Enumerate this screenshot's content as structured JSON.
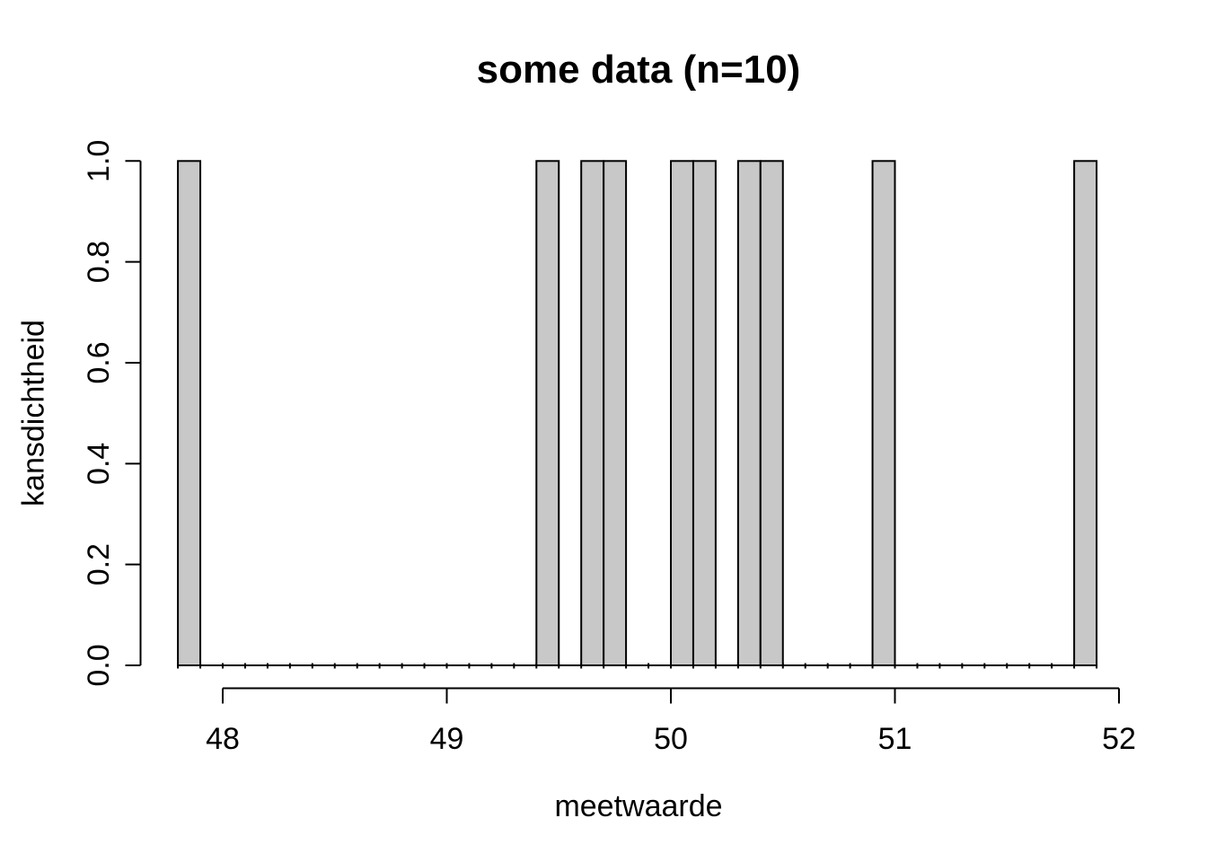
{
  "title": "some data (n=10)",
  "chart_data": {
    "type": "bar",
    "subtype": "histogram",
    "title": "some data (n=10)",
    "xlabel": "meetwaarde",
    "ylabel": "kansdichtheid",
    "xlim": [
      47.63,
      52.06
    ],
    "ylim": [
      0.0,
      1.0
    ],
    "grid": false,
    "legend": "none",
    "bin_width": 0.1,
    "x_ticks": [
      {
        "value": 48,
        "label": "48"
      },
      {
        "value": 49,
        "label": "49"
      },
      {
        "value": 50,
        "label": "50"
      },
      {
        "value": 51,
        "label": "51"
      },
      {
        "value": 52,
        "label": "52"
      }
    ],
    "y_ticks": [
      {
        "value": 0.0,
        "label": "0.0"
      },
      {
        "value": 0.2,
        "label": "0.2"
      },
      {
        "value": 0.4,
        "label": "0.4"
      },
      {
        "value": 0.6,
        "label": "0.6"
      },
      {
        "value": 0.8,
        "label": "0.8"
      },
      {
        "value": 1.0,
        "label": "1.0"
      }
    ],
    "bins": [
      {
        "start": 47.8,
        "end": 47.9,
        "density": 1.0
      },
      {
        "start": 49.4,
        "end": 49.5,
        "density": 1.0
      },
      {
        "start": 49.6,
        "end": 49.7,
        "density": 1.0
      },
      {
        "start": 49.7,
        "end": 49.8,
        "density": 1.0
      },
      {
        "start": 50.0,
        "end": 50.1,
        "density": 1.0
      },
      {
        "start": 50.1,
        "end": 50.2,
        "density": 1.0
      },
      {
        "start": 50.3,
        "end": 50.4,
        "density": 1.0
      },
      {
        "start": 50.4,
        "end": 50.5,
        "density": 1.0
      },
      {
        "start": 50.9,
        "end": 51.0,
        "density": 1.0
      },
      {
        "start": 51.8,
        "end": 51.9,
        "density": 1.0
      }
    ]
  },
  "colors": {
    "background": "#ffffff",
    "bar_fill": "#c8c8c8",
    "bar_stroke": "#000000",
    "axis": "#000000",
    "text": "#000000"
  }
}
